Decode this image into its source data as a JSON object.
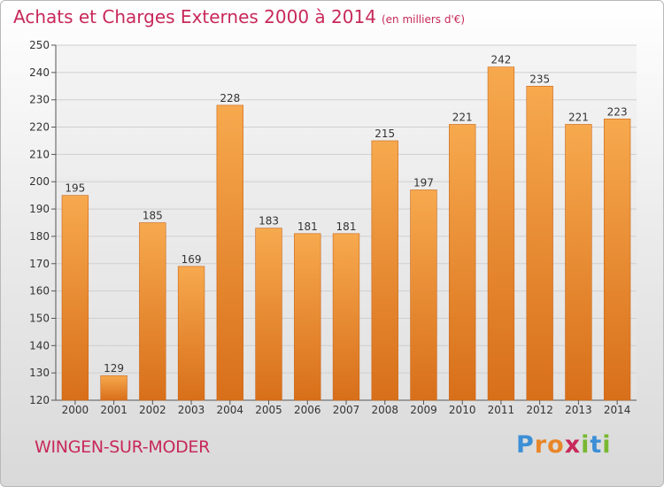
{
  "title": "Achats et Charges Externes 2000 à 2014",
  "subtitle": "(en milliers d'€)",
  "town": "WINGEN-SUR-MODER",
  "logo": {
    "text": "Proxiti",
    "colors": [
      "#3d8fd6",
      "#e8862a",
      "#c8285a",
      "#79b833"
    ]
  },
  "colors": {
    "bar_top": "#f7a94e",
    "bar_bottom": "#d86f1a",
    "grid": "#cfcfcf",
    "title": "#c8285a"
  },
  "chart_data": {
    "type": "bar",
    "title": "Achats et Charges Externes 2000 à 2014",
    "subtitle": "(en milliers d'€)",
    "categories": [
      "2000",
      "2001",
      "2002",
      "2003",
      "2004",
      "2005",
      "2006",
      "2007",
      "2008",
      "2009",
      "2010",
      "2011",
      "2012",
      "2013",
      "2014"
    ],
    "values": [
      195,
      129,
      185,
      169,
      228,
      183,
      181,
      181,
      215,
      197,
      221,
      242,
      235,
      221,
      223
    ],
    "ylim": [
      120,
      250
    ],
    "yticks": [
      120,
      130,
      140,
      150,
      160,
      170,
      180,
      190,
      200,
      210,
      220,
      230,
      240,
      250
    ],
    "grid": true,
    "xlabel": "",
    "ylabel": ""
  }
}
